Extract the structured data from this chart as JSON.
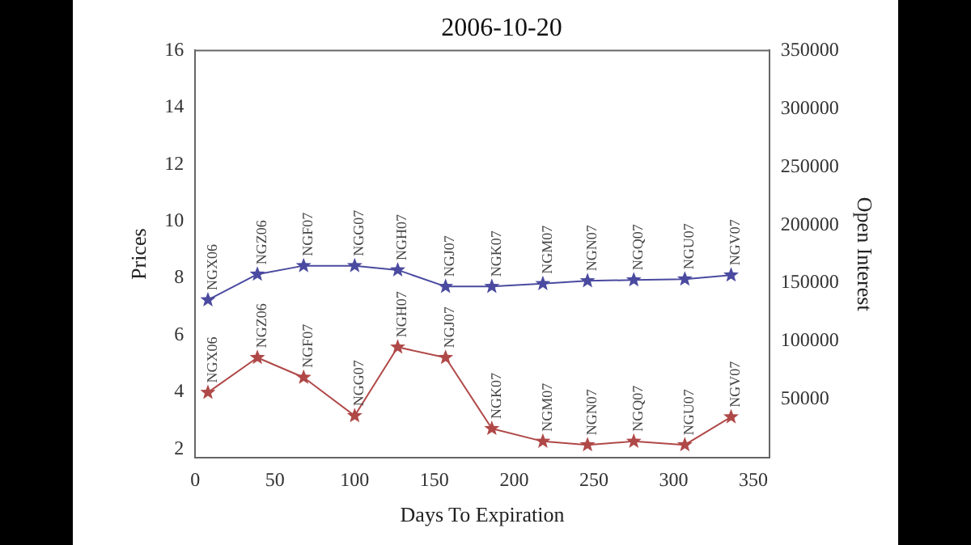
{
  "chart_data": {
    "type": "line",
    "title": "2006-10-20",
    "xlabel": "Days To Expiration",
    "ylabel": "Prices",
    "y2label": "Open Interest",
    "xlim": [
      0,
      360
    ],
    "xticks": [
      0,
      50,
      100,
      150,
      200,
      250,
      300,
      350
    ],
    "ylim": [
      1.7,
      16
    ],
    "yticks": [
      2,
      4,
      6,
      8,
      10,
      12,
      14,
      16
    ],
    "y2lim": [
      0,
      350000
    ],
    "y2ticks": [
      50000,
      100000,
      150000,
      200000,
      250000,
      300000,
      350000
    ],
    "grid": false,
    "legend": false,
    "marker": "star",
    "line_style": "solid",
    "x": [
      8,
      39,
      68,
      100,
      127,
      157,
      186,
      218,
      246,
      275,
      307,
      336
    ],
    "series": [
      {
        "color": "#4a4aa0",
        "values": [
          7.24,
          8.14,
          8.44,
          8.44,
          8.29,
          7.71,
          7.71,
          7.81,
          7.91,
          7.94,
          7.97,
          8.11
        ]
      },
      {
        "color": "#b04848",
        "axis": "y2",
        "values": [
          56000,
          86000,
          69000,
          36000,
          95000,
          86000,
          25000,
          14000,
          11000,
          14000,
          11000,
          35000
        ],
        "value_labels": [
          "NGX06",
          "NGZ06",
          "NGF07",
          "NGG07",
          "NGH07",
          "NGJ07",
          "NGK07",
          "NGM07",
          "NGN07",
          "NGQ07",
          "NGU07",
          "NGV07"
        ]
      }
    ],
    "annotations": [
      {
        "text": "NGX06",
        "x": 8,
        "y": 7.24
      },
      {
        "text": "NGZ06",
        "x": 39,
        "y": 8.14
      },
      {
        "text": "NGF07",
        "x": 68,
        "y": 8.44
      },
      {
        "text": "NGG07",
        "x": 100,
        "y": 8.44
      },
      {
        "text": "NGH07",
        "x": 127,
        "y": 8.29
      },
      {
        "text": "NGJ07",
        "x": 157,
        "y": 7.71
      },
      {
        "text": "NGK07",
        "x": 186,
        "y": 7.71
      },
      {
        "text": "NGM07",
        "x": 218,
        "y": 7.81
      },
      {
        "text": "NGN07",
        "x": 246,
        "y": 7.91
      },
      {
        "text": "NGQ07",
        "x": 275,
        "y": 7.94
      },
      {
        "text": "NGU07",
        "x": 307,
        "y": 7.97
      },
      {
        "text": "NGV07",
        "x": 336,
        "y": 8.11
      }
    ]
  }
}
